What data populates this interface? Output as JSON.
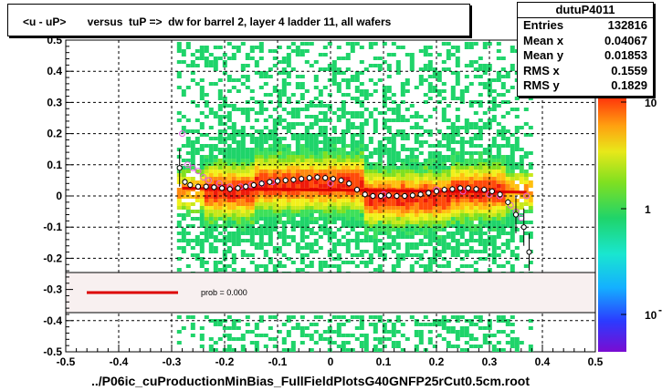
{
  "title": "<u - uP>       versus  tuP =>  dw for barrel 2, layer 4 ladder 11, all wafers",
  "xlabel": "../P06ic_cuProductionMinBias_FullFieldPlotsG40GNFP25rCut0.5cm.root",
  "stats": {
    "name": "dutuP4011",
    "rows": [
      {
        "label": "Entries",
        "value": "132816"
      },
      {
        "label": "Mean x",
        "value": "0.04067"
      },
      {
        "label": "Mean y",
        "value": "0.01853"
      },
      {
        "label": "RMS x",
        "value": "0.1559"
      },
      {
        "label": "RMS y",
        "value": "0.1829"
      }
    ]
  },
  "legend": {
    "fit_label": "prob = 0.000",
    "fit_color": "#dd0000"
  },
  "colorbar": {
    "labels": [
      "10",
      "1",
      "10"
    ],
    "sup": "-1"
  },
  "chart_data": {
    "type": "scatter",
    "xlim": [
      -0.5,
      0.5
    ],
    "ylim": [
      -0.5,
      0.5
    ],
    "x_ticks": [
      "-0.5",
      "-0.4",
      "-0.3",
      "-0.2",
      "-0.1",
      "0",
      "0.1",
      "0.2",
      "0.3",
      "0.4",
      "0.5"
    ],
    "y_ticks": [
      "-0.5",
      "-0.4",
      "-0.3",
      "-0.2",
      "-0.1",
      "0",
      "0.1",
      "0.2",
      "0.3",
      "0.4",
      "0.5"
    ],
    "grid": true,
    "fit_line": {
      "x": [
        -0.28,
        0.37
      ],
      "y": [
        0.025,
        0.012
      ],
      "color": "#dd0000"
    },
    "profile_black": {
      "x": [
        -0.285,
        -0.275,
        -0.265,
        -0.25,
        -0.235,
        -0.22,
        -0.205,
        -0.19,
        -0.175,
        -0.16,
        -0.145,
        -0.13,
        -0.115,
        -0.1,
        -0.085,
        -0.07,
        -0.055,
        -0.04,
        -0.025,
        -0.01,
        0.005,
        0.02,
        0.035,
        0.05,
        0.065,
        0.08,
        0.095,
        0.11,
        0.125,
        0.14,
        0.155,
        0.17,
        0.185,
        0.2,
        0.215,
        0.23,
        0.245,
        0.26,
        0.275,
        0.29,
        0.305,
        0.32,
        0.335,
        0.35,
        0.365,
        0.375
      ],
      "y": [
        0.09,
        0.045,
        0.035,
        0.03,
        0.03,
        0.028,
        0.025,
        0.022,
        0.025,
        0.03,
        0.035,
        0.04,
        0.045,
        0.048,
        0.05,
        0.052,
        0.055,
        0.058,
        0.06,
        0.058,
        0.055,
        0.05,
        0.04,
        0.02,
        0.005,
        0.0,
        0.0,
        0.002,
        0.0,
        0.0,
        0.002,
        0.005,
        0.01,
        0.015,
        0.02,
        0.022,
        0.025,
        0.025,
        0.022,
        0.02,
        0.015,
        0.005,
        -0.02,
        -0.06,
        -0.1,
        -0.18
      ]
    },
    "profile_magenta": {
      "x": [
        -0.28,
        -0.27,
        -0.26,
        -0.25,
        -0.24,
        -0.23,
        -0.21,
        -0.19,
        -0.17,
        -0.15,
        -0.13,
        -0.11,
        0.0,
        0.1,
        0.2,
        0.25,
        0.3,
        0.32,
        0.34,
        0.35,
        0.36,
        0.37
      ],
      "y": [
        0.2,
        0.1,
        0.09,
        0.08,
        0.06,
        0.05,
        0.04,
        0.03,
        0.03,
        0.035,
        0.04,
        0.045,
        0.04,
        0.005,
        0.02,
        0.015,
        0.005,
        0.0,
        -0.03,
        -0.05,
        -0.07,
        0.0
      ]
    }
  }
}
